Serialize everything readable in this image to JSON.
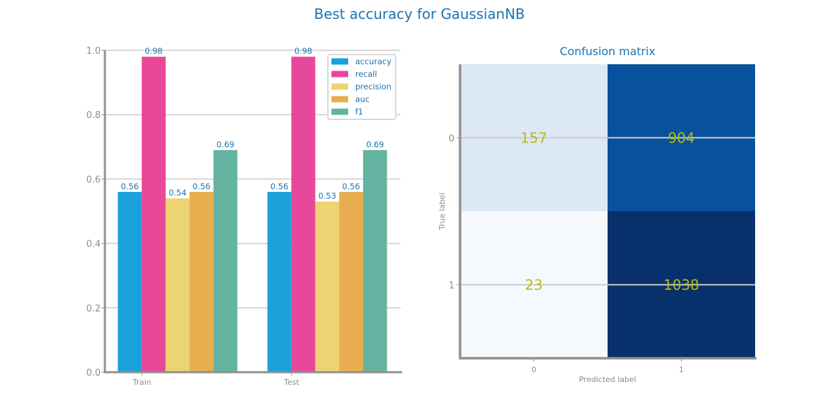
{
  "figure_title": "Best accuracy for GaussianNB",
  "colors": {
    "accuracy": "#1aa1d9",
    "recall": "#e8489a",
    "precision": "#ecd472",
    "auc": "#e8ad4e",
    "f1": "#64b3a0",
    "title_text": "#1a73b0",
    "axis": "#909090",
    "grid": "#cccccc",
    "value_label": "#1a73b0",
    "cm_text": "#b8bb12"
  },
  "chart_data": [
    {
      "type": "bar",
      "categories": [
        "Train",
        "Test"
      ],
      "series": [
        {
          "name": "accuracy",
          "values": [
            0.56,
            0.56
          ]
        },
        {
          "name": "recall",
          "values": [
            0.98,
            0.98
          ]
        },
        {
          "name": "precision",
          "values": [
            0.54,
            0.53
          ]
        },
        {
          "name": "auc",
          "values": [
            0.56,
            0.56
          ]
        },
        {
          "name": "f1",
          "values": [
            0.69,
            0.69
          ]
        }
      ],
      "ylim": [
        0,
        1.0
      ],
      "yticks": [
        "0.0",
        "0.2",
        "0.4",
        "0.6",
        "0.8",
        "1.0"
      ],
      "grid": true,
      "legend": "top-right",
      "title": ""
    },
    {
      "type": "heatmap",
      "title": "Confusion matrix",
      "xlabel": "Predicted label",
      "ylabel": "True label",
      "x_ticks": [
        "0",
        "1"
      ],
      "y_ticks": [
        "0",
        "1"
      ],
      "matrix": [
        [
          157,
          904
        ],
        [
          23,
          1038
        ]
      ],
      "colormap": "Blues",
      "cell_colors": [
        [
          "#dce8f4",
          "#08519c"
        ],
        [
          "#f5f9fe",
          "#08306b"
        ]
      ]
    }
  ]
}
